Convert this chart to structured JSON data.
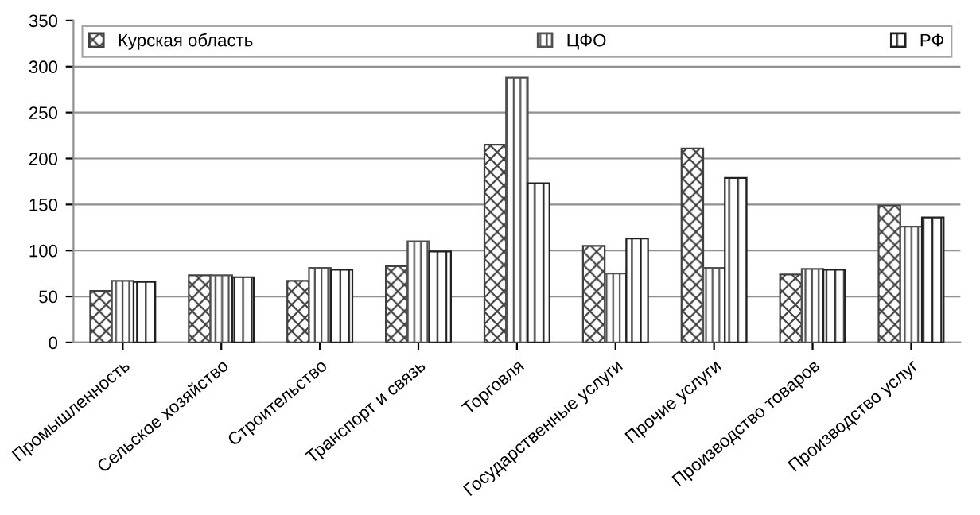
{
  "chart_data": {
    "type": "bar",
    "categories": [
      "Промышленность",
      "Сельское хозяйство",
      "Строительство",
      "Транспорт и связь",
      "Торговля",
      "Государственные услуги",
      "Прочие услуги",
      "Производство товаров",
      "Производство услуг"
    ],
    "series": [
      {
        "name": "Курская область",
        "color": "#404040",
        "values": [
          56,
          73,
          67,
          83,
          215,
          105,
          211,
          74,
          149
        ]
      },
      {
        "name": "ЦФО",
        "color": "#505050",
        "values": [
          67,
          73,
          81,
          110,
          288,
          75,
          81,
          80,
          126
        ]
      },
      {
        "name": "РФ",
        "color": "#202020",
        "values": [
          66,
          71,
          79,
          99,
          173,
          113,
          179,
          79,
          136
        ]
      }
    ],
    "ylim": [
      0,
      350
    ],
    "yticks": [
      0,
      50,
      100,
      150,
      200,
      250,
      300,
      350
    ],
    "grid": "y",
    "legend": "top"
  }
}
